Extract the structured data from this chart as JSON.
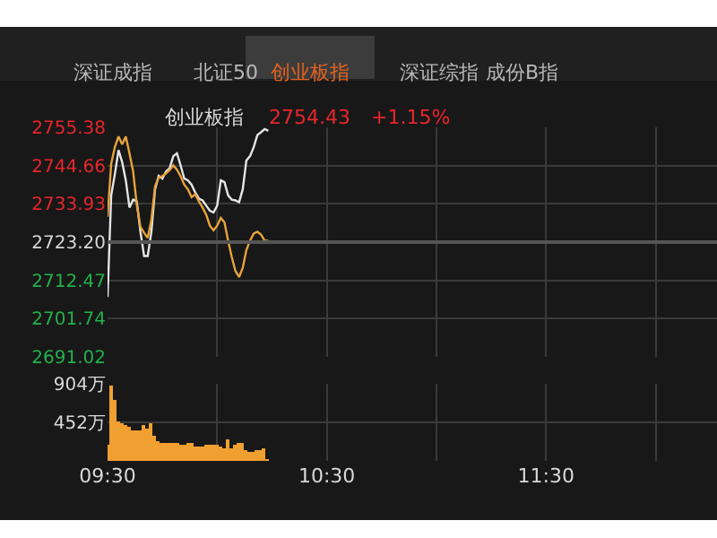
{
  "chart_data": [
    {
      "type": "line",
      "title": "创业板指",
      "annotations": [
        "深证成指",
        "北证50",
        "创业板指",
        "深证综指",
        "成份B指",
        "2754.43",
        "+1.15%"
      ],
      "x": [
        9.5,
        9.5167,
        9.5333,
        9.55,
        9.5667,
        9.5833,
        9.6,
        9.6167,
        9.6333,
        9.65,
        9.6667,
        9.6833,
        9.7,
        9.7167,
        9.7333,
        9.75,
        9.7667,
        9.7833,
        9.8,
        9.8167,
        9.8333,
        9.85,
        9.8667,
        9.8833,
        9.9,
        9.9167,
        9.9333,
        9.95,
        9.9667,
        9.9833,
        10.0,
        10.0167,
        10.0333,
        10.05,
        10.0667,
        10.0833,
        10.1,
        10.1167,
        10.1333,
        10.15,
        10.1667,
        10.1833,
        10.2,
        10.2167,
        10.2333
      ],
      "series": [
        {
          "color": "#e6e6e6",
          "values": [
            2707.8,
            2736.3,
            2742.2,
            2749.0,
            2745.6,
            2740.5,
            2732.9,
            2735.1,
            2734.6,
            2726.1,
            2719.3,
            2719.3,
            2726.1,
            2738.0,
            2741.8,
            2741.0,
            2743.0,
            2743.9,
            2747.3,
            2748.1,
            2744.7,
            2741.0,
            2740.5,
            2739.3,
            2737.1,
            2735.4,
            2734.9,
            2733.4,
            2732.0,
            2731.5,
            2733.4,
            2740.5,
            2740.0,
            2736.3,
            2735.1,
            2734.9,
            2734.4,
            2738.0,
            2746.1,
            2747.3,
            2749.8,
            2753.2,
            2754.0,
            2754.9,
            2754.4
          ]
        },
        {
          "color": "#e8a33c",
          "values": [
            2730.3,
            2745.2,
            2749.8,
            2752.8,
            2750.6,
            2752.8,
            2748.1,
            2743.0,
            2733.7,
            2727.5,
            2725.8,
            2724.4,
            2729.5,
            2738.8,
            2741.3,
            2741.7,
            2742.5,
            2743.4,
            2744.7,
            2743.5,
            2741.7,
            2739.3,
            2738.0,
            2735.8,
            2736.6,
            2734.6,
            2732.9,
            2730.9,
            2727.8,
            2726.5,
            2727.8,
            2730.0,
            2728.7,
            2723.6,
            2719.0,
            2715.1,
            2713.4,
            2716.0,
            2721.0,
            2723.6,
            2725.6,
            2726.1,
            2725.3,
            2723.6,
            2723.6
          ]
        }
      ],
      "xlim": [
        9.5,
        12.28
      ],
      "xticks": [
        {
          "value": 9.5,
          "label": null
        },
        {
          "value": 10.0,
          "label": null
        },
        {
          "value": 10.5,
          "label": null
        },
        {
          "value": 11.0,
          "label": null
        },
        {
          "value": 11.5,
          "label": null
        },
        {
          "value": 12.0,
          "label": null
        }
      ],
      "ylim": [
        2691.02,
        2755.38
      ],
      "yticks": [
        2755.38,
        2744.66,
        2733.93,
        {
          "value": 2723.2,
          "label": "2723.20"
        },
        2712.47,
        2701.74,
        2691.02
      ],
      "ref_lines": [
        {
          "axis": "y",
          "value": 2723.2
        }
      ],
      "tick_labels": "y",
      "grid": true,
      "marker": "none",
      "line_style": "solid"
    },
    {
      "type": "bar",
      "color": "#f0a030",
      "x": [
        9.5,
        9.5167,
        9.5333,
        9.55,
        9.5667,
        9.5833,
        9.6,
        9.6167,
        9.6333,
        9.65,
        9.6667,
        9.6833,
        9.7,
        9.7167,
        9.7333,
        9.75,
        9.7667,
        9.7833,
        9.8,
        9.8167,
        9.8333,
        9.85,
        9.8667,
        9.8833,
        9.9,
        9.9167,
        9.9333,
        9.95,
        9.9667,
        9.9833,
        10.0,
        10.0167,
        10.0333,
        10.05,
        10.0667,
        10.0833,
        10.1,
        10.1167,
        10.1333,
        10.15,
        10.1667,
        10.1833,
        10.2,
        10.2167,
        10.2333
      ],
      "values": [
        190,
        880,
        710,
        470,
        450,
        420,
        400,
        360,
        350,
        350,
        420,
        370,
        450,
        300,
        230,
        220,
        210,
        210,
        210,
        200,
        180,
        180,
        210,
        200,
        160,
        170,
        170,
        180,
        180,
        180,
        180,
        160,
        150,
        250,
        150,
        180,
        200,
        220,
        120,
        110,
        110,
        120,
        120,
        140,
        20
      ],
      "xlim": [
        9.5,
        12.28
      ],
      "xticks": [
        {
          "value": 9.5,
          "label": "09:30"
        },
        {
          "value": 10.0,
          "label": null
        },
        {
          "value": 10.5,
          "label": "10:30"
        },
        {
          "value": 11.0,
          "label": null
        },
        {
          "value": 11.5,
          "label": "11:30"
        },
        {
          "value": 12.0,
          "label": null
        }
      ],
      "ylim": [
        0,
        904
      ],
      "yticks": [
        {
          "value": 904,
          "label": "904万"
        },
        {
          "value": 452,
          "label": "452万"
        }
      ],
      "grid": true
    }
  ]
}
